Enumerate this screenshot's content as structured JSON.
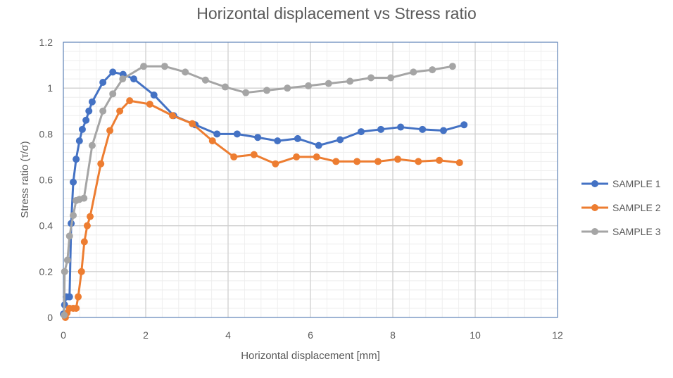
{
  "chart_data": {
    "type": "line",
    "title": "Horizontal displacement vs Stress ratio",
    "xlabel": "Horizontal displacement [mm]",
    "ylabel": "Stress ratio (τ/σ)",
    "xlim": [
      0,
      12
    ],
    "ylim": [
      0,
      1.2
    ],
    "xticks": [
      "0",
      "2",
      "4",
      "6",
      "8",
      "10",
      "12"
    ],
    "yticks": [
      "0",
      "0.2",
      "0.4",
      "0.6",
      "0.8",
      "1",
      "1.2"
    ],
    "grid": true,
    "legend_position": "right",
    "series": [
      {
        "name": "SAMPLE 1",
        "color": "#4472C4",
        "x": [
          0,
          0.03,
          0.07,
          0.15,
          0.19,
          0.24,
          0.31,
          0.39,
          0.46,
          0.55,
          0.62,
          0.7,
          0.96,
          1.2,
          1.45,
          1.71,
          2.2,
          2.68,
          3.2,
          3.73,
          4.22,
          4.72,
          5.2,
          5.69,
          6.2,
          6.72,
          7.23,
          7.71,
          8.19,
          8.72,
          9.23,
          9.73
        ],
        "y": [
          0.015,
          0.055,
          0.09,
          0.09,
          0.41,
          0.59,
          0.69,
          0.77,
          0.82,
          0.86,
          0.9,
          0.94,
          1.025,
          1.07,
          1.06,
          1.04,
          0.97,
          0.88,
          0.84,
          0.8,
          0.8,
          0.785,
          0.77,
          0.78,
          0.75,
          0.775,
          0.81,
          0.82,
          0.83,
          0.82,
          0.815,
          0.84
        ]
      },
      {
        "name": "SAMPLE 2",
        "color": "#ED7D31",
        "x": [
          0.05,
          0.09,
          0.15,
          0.24,
          0.31,
          0.36,
          0.44,
          0.51,
          0.58,
          0.65,
          0.91,
          1.13,
          1.37,
          1.61,
          2.1,
          2.65,
          3.13,
          3.62,
          4.14,
          4.63,
          5.15,
          5.66,
          6.15,
          6.62,
          7.13,
          7.64,
          8.12,
          8.62,
          9.13,
          9.62
        ],
        "y": [
          0.0,
          0.02,
          0.04,
          0.04,
          0.04,
          0.09,
          0.2,
          0.33,
          0.4,
          0.44,
          0.67,
          0.815,
          0.9,
          0.945,
          0.93,
          0.88,
          0.845,
          0.77,
          0.7,
          0.71,
          0.67,
          0.7,
          0.7,
          0.68,
          0.68,
          0.68,
          0.69,
          0.68,
          0.685,
          0.675
        ]
      },
      {
        "name": "SAMPLE 3",
        "color": "#A5A5A5",
        "x": [
          0.02,
          0.03,
          0.1,
          0.15,
          0.24,
          0.31,
          0.39,
          0.5,
          0.7,
          0.96,
          1.2,
          1.44,
          1.95,
          2.46,
          2.96,
          3.45,
          3.93,
          4.43,
          4.94,
          5.44,
          5.95,
          6.44,
          6.96,
          7.47,
          7.95,
          8.5,
          8.96,
          9.45
        ],
        "y": [
          0.01,
          0.2,
          0.25,
          0.355,
          0.445,
          0.51,
          0.515,
          0.52,
          0.75,
          0.9,
          0.975,
          1.04,
          1.095,
          1.095,
          1.07,
          1.035,
          1.005,
          0.98,
          0.99,
          1.0,
          1.01,
          1.02,
          1.03,
          1.045,
          1.045,
          1.07,
          1.08,
          1.095
        ]
      }
    ]
  }
}
